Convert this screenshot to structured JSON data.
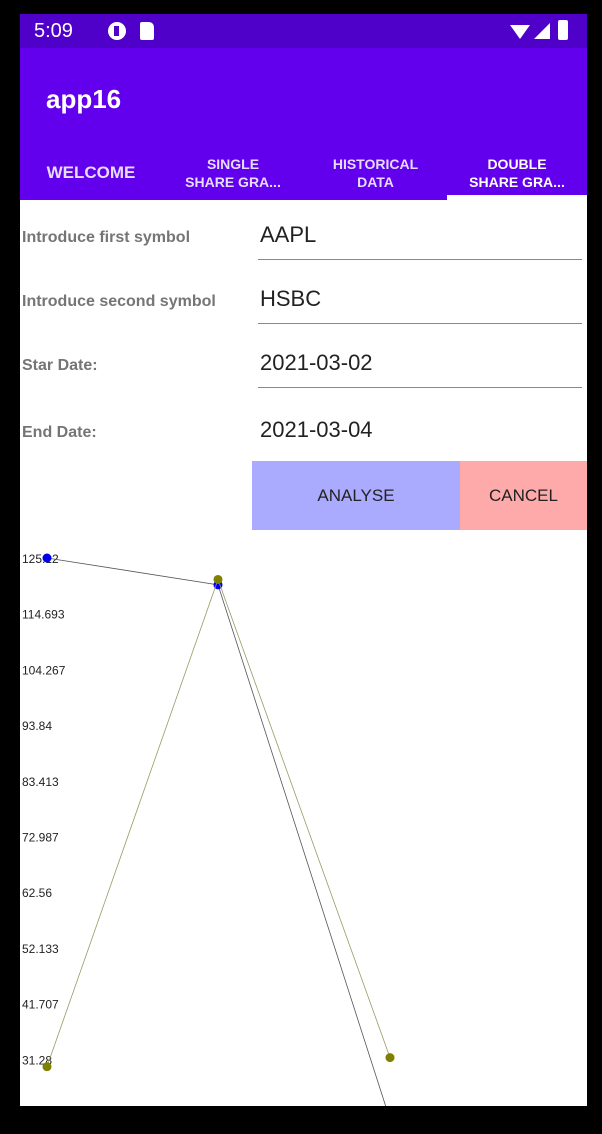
{
  "status_bar": {
    "time": "5:09",
    "icons": [
      "circle-p-icon",
      "sd-card-icon",
      "wifi-icon",
      "signal-icon",
      "battery-icon"
    ]
  },
  "app": {
    "title": "app16"
  },
  "tabs": [
    {
      "line1": "WELCOME",
      "line2": ""
    },
    {
      "line1": "SINGLE",
      "line2": "SHARE GRA..."
    },
    {
      "line1": "HISTORICAL",
      "line2": "DATA"
    },
    {
      "line1": "DOUBLE",
      "line2": "SHARE GRA..."
    }
  ],
  "form": {
    "first_symbol_label": "Introduce first symbol",
    "first_symbol_value": "AAPL",
    "second_symbol_label": "Introduce second symbol",
    "second_symbol_value": "HSBC",
    "start_date_label": "Star Date:",
    "start_date_value": "2021-03-02",
    "end_date_label": "End Date:",
    "end_date_value": "2021-03-04"
  },
  "buttons": {
    "analyse": "ANALYSE",
    "cancel": "CANCEL"
  },
  "colors": {
    "status_bar": "#4f00c9",
    "app_bar": "#6200ee",
    "analyse": "#aaaaff",
    "cancel": "#ffaaaa",
    "series_blue": "#0000ee",
    "series_olive": "#808000"
  },
  "chart_data": {
    "type": "line",
    "y_ticks": [
      "125.12",
      "114.693",
      "104.267",
      "93.84",
      "83.413",
      "72.987",
      "62.56",
      "52.133",
      "41.707",
      "31.28"
    ],
    "ylim": [
      20.853,
      125.12
    ],
    "series": [
      {
        "color": "#0000ee",
        "points": [
          [
            0,
            125.12
          ],
          [
            1,
            120.1
          ],
          [
            2,
            20.0
          ]
        ]
      },
      {
        "color": "#808000",
        "points": [
          [
            0,
            29.9
          ],
          [
            1,
            121.1
          ],
          [
            2,
            31.6
          ]
        ]
      }
    ]
  }
}
